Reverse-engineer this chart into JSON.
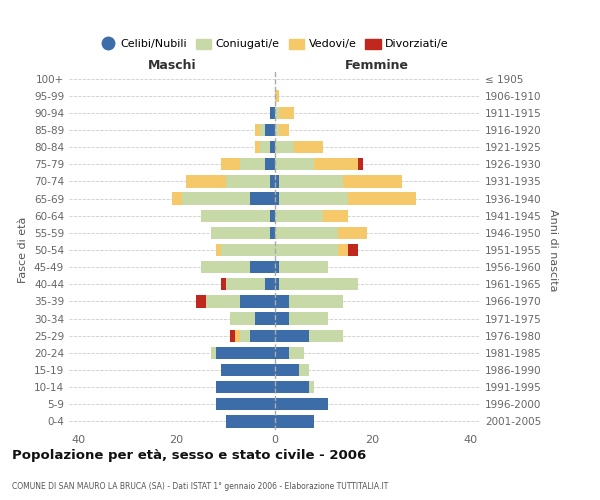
{
  "age_groups": [
    "0-4",
    "5-9",
    "10-14",
    "15-19",
    "20-24",
    "25-29",
    "30-34",
    "35-39",
    "40-44",
    "45-49",
    "50-54",
    "55-59",
    "60-64",
    "65-69",
    "70-74",
    "75-79",
    "80-84",
    "85-89",
    "90-94",
    "95-99",
    "100+"
  ],
  "birth_years": [
    "2001-2005",
    "1996-2000",
    "1991-1995",
    "1986-1990",
    "1981-1985",
    "1976-1980",
    "1971-1975",
    "1966-1970",
    "1961-1965",
    "1956-1960",
    "1951-1955",
    "1946-1950",
    "1941-1945",
    "1936-1940",
    "1931-1935",
    "1926-1930",
    "1921-1925",
    "1916-1920",
    "1911-1915",
    "1906-1910",
    "≤ 1905"
  ],
  "maschi_celibi": [
    10,
    12,
    12,
    11,
    12,
    5,
    4,
    7,
    2,
    5,
    0,
    1,
    1,
    5,
    1,
    2,
    1,
    2,
    1,
    0,
    0
  ],
  "maschi_coniugati": [
    0,
    0,
    0,
    0,
    1,
    2,
    5,
    7,
    8,
    10,
    11,
    12,
    14,
    14,
    9,
    5,
    2,
    1,
    0,
    0,
    0
  ],
  "maschi_vedovi": [
    0,
    0,
    0,
    0,
    0,
    1,
    0,
    0,
    0,
    0,
    1,
    0,
    0,
    2,
    8,
    4,
    1,
    1,
    0,
    0,
    0
  ],
  "maschi_divorziati": [
    0,
    0,
    0,
    0,
    0,
    1,
    0,
    2,
    1,
    0,
    0,
    0,
    0,
    0,
    0,
    0,
    0,
    0,
    0,
    0,
    0
  ],
  "femmine_nubili": [
    8,
    11,
    7,
    5,
    3,
    7,
    3,
    3,
    1,
    1,
    0,
    0,
    0,
    1,
    1,
    0,
    0,
    0,
    0,
    0,
    0
  ],
  "femmine_coniugate": [
    0,
    0,
    1,
    2,
    3,
    7,
    8,
    11,
    16,
    10,
    13,
    13,
    10,
    14,
    13,
    8,
    4,
    1,
    1,
    0,
    0
  ],
  "femmine_vedove": [
    0,
    0,
    0,
    0,
    0,
    0,
    0,
    0,
    0,
    0,
    2,
    6,
    5,
    14,
    12,
    9,
    6,
    2,
    3,
    1,
    0
  ],
  "femmine_divorziate": [
    0,
    0,
    0,
    0,
    0,
    0,
    0,
    0,
    0,
    0,
    2,
    0,
    0,
    0,
    0,
    1,
    0,
    0,
    0,
    0,
    0
  ],
  "color_celibi": "#3d6da8",
  "color_coniugati": "#c8d9a8",
  "color_vedovi": "#f5c96a",
  "color_divorziati": "#c0281e",
  "legend_labels": [
    "Celibi/Nubili",
    "Coniugati/e",
    "Vedovi/e",
    "Divorziati/e"
  ],
  "title": "Popolazione per età, sesso e stato civile - 2006",
  "subtitle": "COMUNE DI SAN MAURO LA BRUCA (SA) - Dati ISTAT 1° gennaio 2006 - Elaborazione TUTTITALIA.IT",
  "ylabel_left": "Fasce di età",
  "ylabel_right": "Anni di nascita",
  "label_maschi": "Maschi",
  "label_femmine": "Femmine",
  "xlim": 42,
  "bg_color": "#ffffff",
  "grid_color": "#cccccc"
}
